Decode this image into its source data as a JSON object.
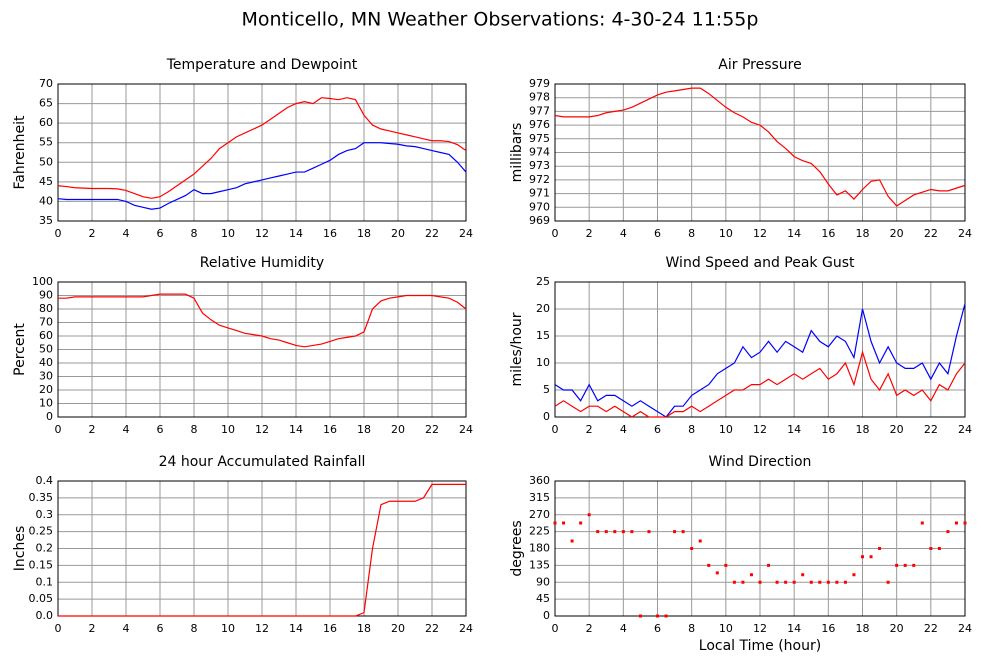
{
  "title": "Monticello, MN Weather Observations: 4-30-24 11:55p",
  "chart_data": [
    {
      "type": "line",
      "title": "Temperature and Dewpoint",
      "ylabel": "Fahrenheit",
      "x": [
        0,
        0.5,
        1,
        1.5,
        2,
        2.5,
        3,
        3.5,
        4,
        4.5,
        5,
        5.5,
        6,
        6.5,
        7,
        7.5,
        8,
        8.5,
        9,
        9.5,
        10,
        10.5,
        11,
        11.5,
        12,
        12.5,
        13,
        13.5,
        14,
        14.5,
        15,
        15.5,
        16,
        16.5,
        17,
        17.5,
        18,
        18.5,
        19,
        19.5,
        20,
        20.5,
        21,
        21.5,
        22,
        22.5,
        23,
        23.5,
        24
      ],
      "series": [
        {
          "name": "Temperature",
          "color": "#ff0000",
          "values": [
            44,
            43.8,
            43.5,
            43.4,
            43.3,
            43.3,
            43.3,
            43.2,
            42.8,
            42,
            41.2,
            40.8,
            41.2,
            42.5,
            44,
            45.5,
            47,
            49,
            51,
            53.5,
            55,
            56.5,
            57.5,
            58.5,
            59.5,
            61,
            62.5,
            64,
            65,
            65.5,
            65,
            66.5,
            66.3,
            66,
            66.5,
            66,
            62,
            59.5,
            58.5,
            58,
            57.5,
            57,
            56.5,
            56,
            55.5,
            55.5,
            55.3,
            54.5,
            53
          ]
        },
        {
          "name": "Dewpoint",
          "color": "#0000ff",
          "values": [
            40.7,
            40.5,
            40.5,
            40.5,
            40.5,
            40.5,
            40.5,
            40.5,
            40,
            39,
            38.5,
            38,
            38.3,
            39.5,
            40.5,
            41.5,
            43,
            42,
            42,
            42.5,
            43,
            43.5,
            44.5,
            45,
            45.5,
            46,
            46.5,
            47,
            47.5,
            47.5,
            48.5,
            49.5,
            50.5,
            52,
            53,
            53.5,
            55,
            55,
            55,
            54.8,
            54.6,
            54.2,
            54,
            53.5,
            53,
            52.5,
            52,
            50,
            47.5
          ]
        }
      ],
      "xlim": [
        0,
        24
      ],
      "xticks": [
        0,
        2,
        4,
        6,
        8,
        10,
        12,
        14,
        16,
        18,
        20,
        22,
        24
      ],
      "ylim": [
        35,
        70
      ],
      "yticks": [
        35,
        40,
        45,
        50,
        55,
        60,
        65,
        70
      ],
      "grid": true
    },
    {
      "type": "line",
      "title": "Air Pressure",
      "ylabel": "millibars",
      "x": [
        0,
        0.5,
        1,
        1.5,
        2,
        2.5,
        3,
        3.5,
        4,
        4.5,
        5,
        5.5,
        6,
        6.5,
        7,
        7.5,
        8,
        8.5,
        9,
        9.5,
        10,
        10.5,
        11,
        11.5,
        12,
        12.5,
        13,
        13.5,
        14,
        14.5,
        15,
        15.5,
        16,
        16.5,
        17,
        17.5,
        18,
        18.5,
        19,
        19.5,
        20,
        20.5,
        21,
        21.5,
        22,
        22.5,
        23,
        23.5,
        24
      ],
      "series": [
        {
          "name": "Pressure",
          "color": "#ff0000",
          "values": [
            976.7,
            976.6,
            976.6,
            976.6,
            976.6,
            976.7,
            976.9,
            977,
            977.1,
            977.3,
            977.6,
            977.9,
            978.2,
            978.4,
            978.5,
            978.6,
            978.7,
            978.7,
            978.3,
            977.8,
            977.3,
            976.9,
            976.6,
            976.2,
            976,
            975.5,
            974.8,
            974.3,
            973.7,
            973.4,
            973.2,
            972.6,
            971.7,
            970.9,
            971.2,
            970.6,
            971.3,
            971.9,
            972,
            970.8,
            970.1,
            970.5,
            970.9,
            971.1,
            971.3,
            971.2,
            971.2,
            971.4,
            971.6
          ]
        }
      ],
      "xlim": [
        0,
        24
      ],
      "xticks": [
        0,
        2,
        4,
        6,
        8,
        10,
        12,
        14,
        16,
        18,
        20,
        22,
        24
      ],
      "ylim": [
        969,
        979
      ],
      "yticks": [
        969,
        970,
        971,
        972,
        973,
        974,
        975,
        976,
        977,
        978,
        979
      ],
      "grid": true
    },
    {
      "type": "line",
      "title": "Relative Humidity",
      "ylabel": "Percent",
      "x": [
        0,
        0.5,
        1,
        1.5,
        2,
        2.5,
        3,
        3.5,
        4,
        4.5,
        5,
        5.5,
        6,
        6.5,
        7,
        7.5,
        8,
        8.5,
        9,
        9.5,
        10,
        10.5,
        11,
        11.5,
        12,
        12.5,
        13,
        13.5,
        14,
        14.5,
        15,
        15.5,
        16,
        16.5,
        17,
        17.5,
        18,
        18.5,
        19,
        19.5,
        20,
        20.5,
        21,
        21.5,
        22,
        22.5,
        23,
        23.5,
        24
      ],
      "series": [
        {
          "name": "Humidity",
          "color": "#ff0000",
          "values": [
            88,
            88,
            89,
            89,
            89,
            89,
            89,
            89,
            89,
            89,
            89,
            90,
            91,
            91,
            91,
            91,
            88,
            77,
            72,
            68,
            66,
            64,
            62,
            61,
            60,
            58,
            57,
            55,
            53,
            52,
            53,
            54,
            56,
            58,
            59,
            60,
            63,
            80,
            86,
            88,
            89,
            90,
            90,
            90,
            90,
            89,
            88,
            85,
            80
          ]
        }
      ],
      "xlim": [
        0,
        24
      ],
      "xticks": [
        0,
        2,
        4,
        6,
        8,
        10,
        12,
        14,
        16,
        18,
        20,
        22,
        24
      ],
      "ylim": [
        0,
        100
      ],
      "yticks": [
        0,
        10,
        20,
        30,
        40,
        50,
        60,
        70,
        80,
        90,
        100
      ],
      "grid": true
    },
    {
      "type": "line",
      "title": "Wind Speed and Peak Gust",
      "ylabel": "miles/hour",
      "x": [
        0,
        0.5,
        1,
        1.5,
        2,
        2.5,
        3,
        3.5,
        4,
        4.5,
        5,
        5.5,
        6,
        6.5,
        7,
        7.5,
        8,
        8.5,
        9,
        9.5,
        10,
        10.5,
        11,
        11.5,
        12,
        12.5,
        13,
        13.5,
        14,
        14.5,
        15,
        15.5,
        16,
        16.5,
        17,
        17.5,
        18,
        18.5,
        19,
        19.5,
        20,
        20.5,
        21,
        21.5,
        22,
        22.5,
        23,
        23.5,
        24
      ],
      "series": [
        {
          "name": "Peak Gust",
          "color": "#0000ff",
          "values": [
            6,
            5,
            5,
            3,
            6,
            3,
            4,
            4,
            3,
            2,
            3,
            2,
            1,
            0,
            2,
            2,
            4,
            5,
            6,
            8,
            9,
            10,
            13,
            11,
            12,
            14,
            12,
            14,
            13,
            12,
            16,
            14,
            13,
            15,
            14,
            11,
            20,
            14,
            10,
            13,
            10,
            9,
            9,
            10,
            7,
            10,
            8,
            15,
            21
          ]
        },
        {
          "name": "Wind Speed",
          "color": "#ff0000",
          "values": [
            2,
            3,
            2,
            1,
            2,
            2,
            1,
            2,
            1,
            0,
            1,
            0,
            0,
            0,
            1,
            1,
            2,
            1,
            2,
            3,
            4,
            5,
            5,
            6,
            6,
            7,
            6,
            7,
            8,
            7,
            8,
            9,
            7,
            8,
            10,
            6,
            12,
            7,
            5,
            8,
            4,
            5,
            4,
            5,
            3,
            6,
            5,
            8,
            10
          ]
        }
      ],
      "xlim": [
        0,
        24
      ],
      "xticks": [
        0,
        2,
        4,
        6,
        8,
        10,
        12,
        14,
        16,
        18,
        20,
        22,
        24
      ],
      "ylim": [
        0,
        25
      ],
      "yticks": [
        0,
        5,
        10,
        15,
        20,
        25
      ],
      "grid": true
    },
    {
      "type": "line",
      "title": "24 hour Accumulated Rainfall",
      "ylabel": "Inches",
      "x": [
        0,
        0.5,
        1,
        1.5,
        2,
        2.5,
        3,
        3.5,
        4,
        4.5,
        5,
        5.5,
        6,
        6.5,
        7,
        7.5,
        8,
        8.5,
        9,
        9.5,
        10,
        10.5,
        11,
        11.5,
        12,
        12.5,
        13,
        13.5,
        14,
        14.5,
        15,
        15.5,
        16,
        16.5,
        17,
        17.5,
        18,
        18.5,
        19,
        19.5,
        20,
        20.5,
        21,
        21.5,
        22,
        22.5,
        23,
        23.5,
        24
      ],
      "series": [
        {
          "name": "Rainfall",
          "color": "#ff0000",
          "values": [
            0,
            0,
            0,
            0,
            0,
            0,
            0,
            0,
            0,
            0,
            0,
            0,
            0,
            0,
            0,
            0,
            0,
            0,
            0,
            0,
            0,
            0,
            0,
            0,
            0,
            0,
            0,
            0,
            0,
            0,
            0,
            0,
            0,
            0,
            0,
            0,
            0.01,
            0.2,
            0.33,
            0.34,
            0.34,
            0.34,
            0.34,
            0.35,
            0.39,
            0.39,
            0.39,
            0.39,
            0.39
          ]
        }
      ],
      "xlim": [
        0,
        24
      ],
      "xticks": [
        0,
        2,
        4,
        6,
        8,
        10,
        12,
        14,
        16,
        18,
        20,
        22,
        24
      ],
      "ylim": [
        0,
        0.4
      ],
      "yticks": [
        {
          "value": 0,
          "label": "0.0"
        },
        0.05,
        0.1,
        0.15,
        0.2,
        0.25,
        0.3,
        0.35,
        0.4
      ],
      "grid": true
    },
    {
      "type": "scatter",
      "title": "Wind Direction",
      "ylabel": "degrees",
      "xlabel": "Local Time (hour)",
      "x": [
        0,
        0.5,
        1,
        1.5,
        2,
        2.5,
        3,
        3.5,
        4,
        4.5,
        5,
        5.5,
        6,
        6.5,
        7,
        7.5,
        8,
        8.5,
        9,
        9.5,
        10,
        10.5,
        11,
        11.5,
        12,
        12.5,
        13,
        13.5,
        14,
        14.5,
        15,
        15.5,
        16,
        16.5,
        17,
        17.5,
        18,
        18.5,
        19,
        19.5,
        20,
        20.5,
        21,
        21.5,
        22,
        22.5,
        23,
        23.5,
        24
      ],
      "series": [
        {
          "name": "Direction",
          "color": "#ff0000",
          "values": [
            248,
            248,
            200,
            248,
            270,
            225,
            225,
            225,
            225,
            225,
            0,
            225,
            0,
            0,
            225,
            225,
            180,
            200,
            135,
            115,
            135,
            90,
            90,
            110,
            90,
            135,
            90,
            90,
            90,
            110,
            90,
            90,
            90,
            90,
            90,
            110,
            158,
            158,
            180,
            90,
            135,
            135,
            135,
            248,
            180,
            180,
            225,
            248,
            248
          ]
        }
      ],
      "xlim": [
        0,
        24
      ],
      "xticks": [
        0,
        2,
        4,
        6,
        8,
        10,
        12,
        14,
        16,
        18,
        20,
        22,
        24
      ],
      "ylim": [
        0,
        360
      ],
      "yticks": [
        0,
        45,
        90,
        135,
        180,
        225,
        270,
        315,
        360
      ],
      "grid": true
    }
  ]
}
